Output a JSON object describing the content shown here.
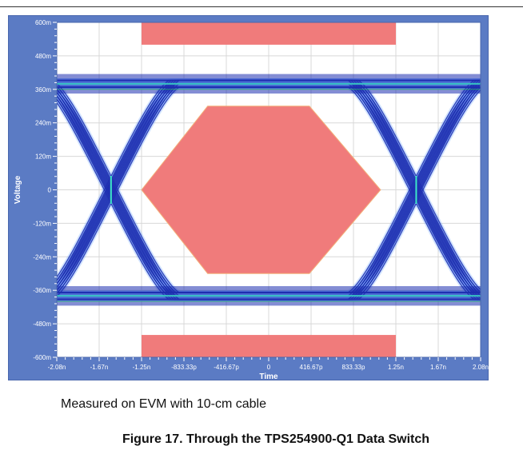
{
  "chart_data": {
    "type": "eye-diagram",
    "xlabel": "Time",
    "ylabel": "Voltage",
    "x_tick_labels": [
      "-2.08n",
      "-1.67n",
      "-1.25n",
      "-833.33p",
      "-416.67p",
      "0",
      "416.67p",
      "833.33p",
      "1.25n",
      "1.67n",
      "2.08n"
    ],
    "x_ticks_ns": [
      -2.0833,
      -1.6667,
      -1.25,
      -0.83333,
      -0.41667,
      0,
      0.41667,
      0.83333,
      1.25,
      1.6667,
      2.0833
    ],
    "y_tick_labels": [
      "600m",
      "480m",
      "360m",
      "240m",
      "120m",
      "0",
      "-120m",
      "-240m",
      "-360m",
      "-480m",
      "-600m"
    ],
    "y_ticks_v": [
      0.6,
      0.48,
      0.36,
      0.24,
      0.12,
      0,
      -0.12,
      -0.24,
      -0.36,
      -0.48,
      -0.6
    ],
    "xlim_ns": [
      -2.0833,
      2.0833
    ],
    "ylim_v": [
      -0.6,
      0.6
    ],
    "grid": true,
    "high_level_v": 0.38,
    "low_level_v": -0.38,
    "crossings_ns": [
      -1.55,
      1.45
    ],
    "mask_hexagon": [
      {
        "x_ns": -1.25,
        "y_v": 0
      },
      {
        "x_ns": -0.6,
        "y_v": 0.3
      },
      {
        "x_ns": 0.4,
        "y_v": 0.3
      },
      {
        "x_ns": 1.1,
        "y_v": 0
      },
      {
        "x_ns": 0.4,
        "y_v": -0.3
      },
      {
        "x_ns": -0.6,
        "y_v": -0.3
      }
    ],
    "mask_top": {
      "x0_ns": -1.25,
      "x1_ns": 1.25,
      "y0_v": 0.52,
      "y1_v": 0.6
    },
    "mask_bottom": {
      "x0_ns": -1.25,
      "x1_ns": 1.25,
      "y0_v": -0.6,
      "y1_v": -0.52
    },
    "colors": {
      "frame": "#5b7bc4",
      "plot_bg": "#ffffff",
      "grid": "#d8d8d8",
      "mask": "#f07b7b",
      "trace_core": "#1e2fb0",
      "trace_halo": "#7fb3ff",
      "trace_hot": "#3de6c8"
    }
  },
  "caption": "Measured on EVM with 10-cm cable",
  "figure_title": "Figure 17. Through the TPS254900-Q1 Data Switch"
}
